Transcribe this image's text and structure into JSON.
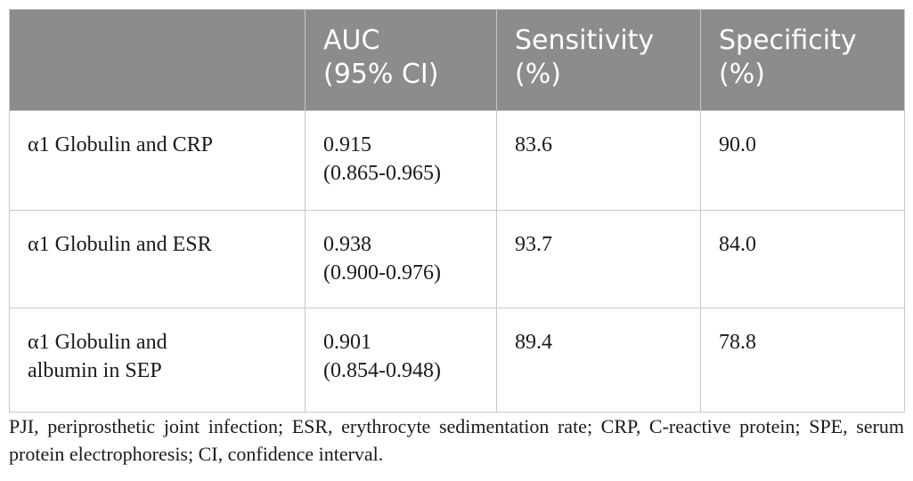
{
  "table": {
    "headers": [
      {
        "line1": "",
        "line2": ""
      },
      {
        "line1": "AUC",
        "line2": "(95% CI)"
      },
      {
        "line1": "Sensitivity",
        "line2": "(%)"
      },
      {
        "line1": "Specificity",
        "line2": "(%)"
      }
    ],
    "rows": [
      {
        "label1": "α1 Globulin and CRP",
        "label2": "",
        "auc": "0.915",
        "ci": "(0.865-0.965)",
        "sensitivity": "83.6",
        "specificity": "90.0"
      },
      {
        "label1": "α1 Globulin and ESR",
        "label2": "",
        "auc": "0.938",
        "ci": "(0.900-0.976)",
        "sensitivity": "93.7",
        "specificity": "84.0"
      },
      {
        "label1": "α1 Globulin and",
        "label2": "albumin in SEP",
        "auc": "0.901",
        "ci": "(0.854-0.948)",
        "sensitivity": "89.4",
        "specificity": "78.8"
      }
    ]
  },
  "footnote": "PJI, periprosthetic joint infection; ESR, erythrocyte sedimentation rate; CRP, C-reactive protein; SPE, serum protein electrophoresis; CI, confidence interval."
}
